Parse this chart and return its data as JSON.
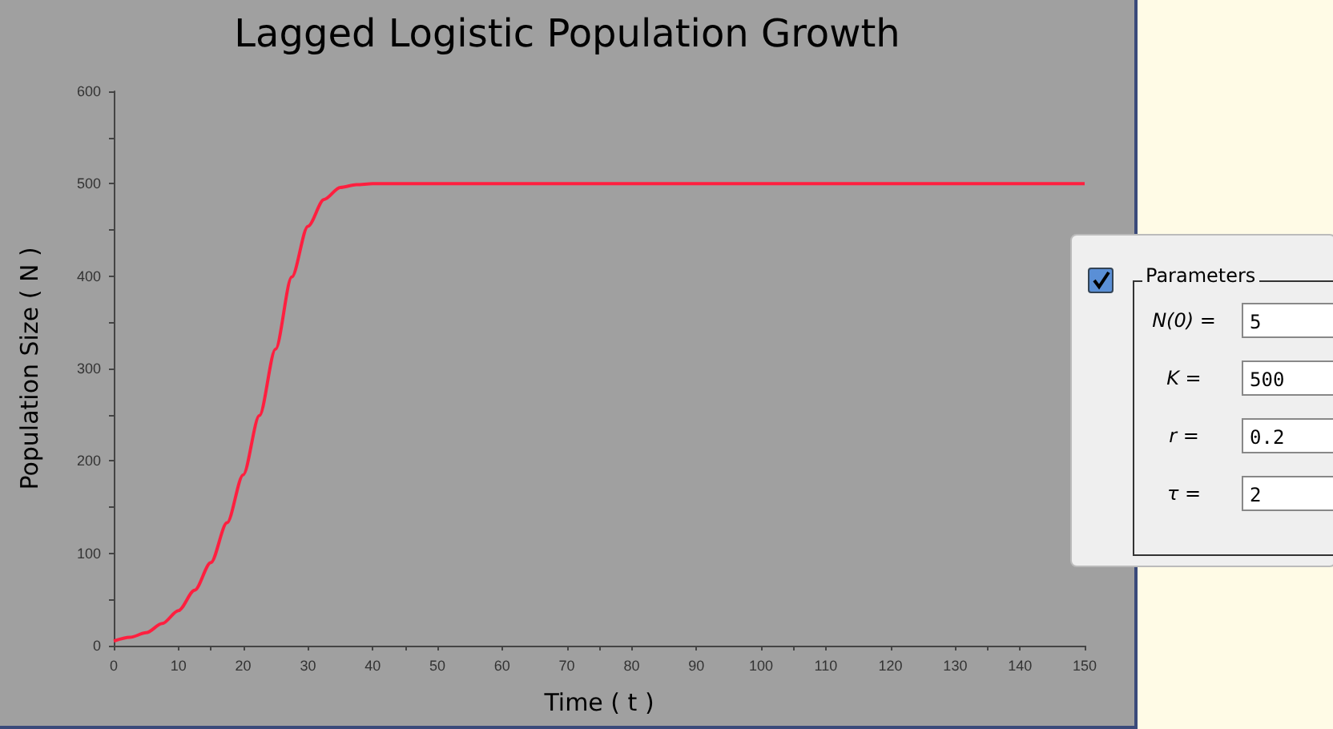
{
  "chart_data": {
    "type": "line",
    "title": "Lagged Logistic Population Growth",
    "xlabel": "Time ( t )",
    "ylabel": "Population Size ( N )",
    "x": [
      0,
      2.5,
      5,
      7.5,
      10,
      12.5,
      15,
      17.5,
      20,
      22.5,
      25,
      27.5,
      30,
      32.5,
      35,
      37.5,
      40,
      50,
      75,
      100,
      125,
      150
    ],
    "series": [
      {
        "color": "#ff1f3f",
        "values": [
          5,
          9,
          14,
          24,
          38,
          60,
          90,
          133,
          185,
          249,
          321,
          399,
          454,
          483,
          496,
          499,
          500,
          500,
          500,
          500,
          500,
          500
        ]
      }
    ],
    "xlim": [
      0,
      150
    ],
    "xticks": [
      0,
      10,
      20,
      30,
      40,
      50,
      60,
      70,
      80,
      90,
      100,
      110,
      120,
      130,
      140,
      150
    ],
    "ylim": [
      0,
      600
    ],
    "yticks": [
      0,
      100,
      200,
      300,
      400,
      500,
      600
    ],
    "grid": false,
    "marker": "none",
    "line_style": "solid",
    "annotations": [
      "Parameters",
      "N(0) =",
      "5",
      "K =",
      "500",
      "r =",
      "0.2",
      "τ =",
      "2"
    ]
  }
}
